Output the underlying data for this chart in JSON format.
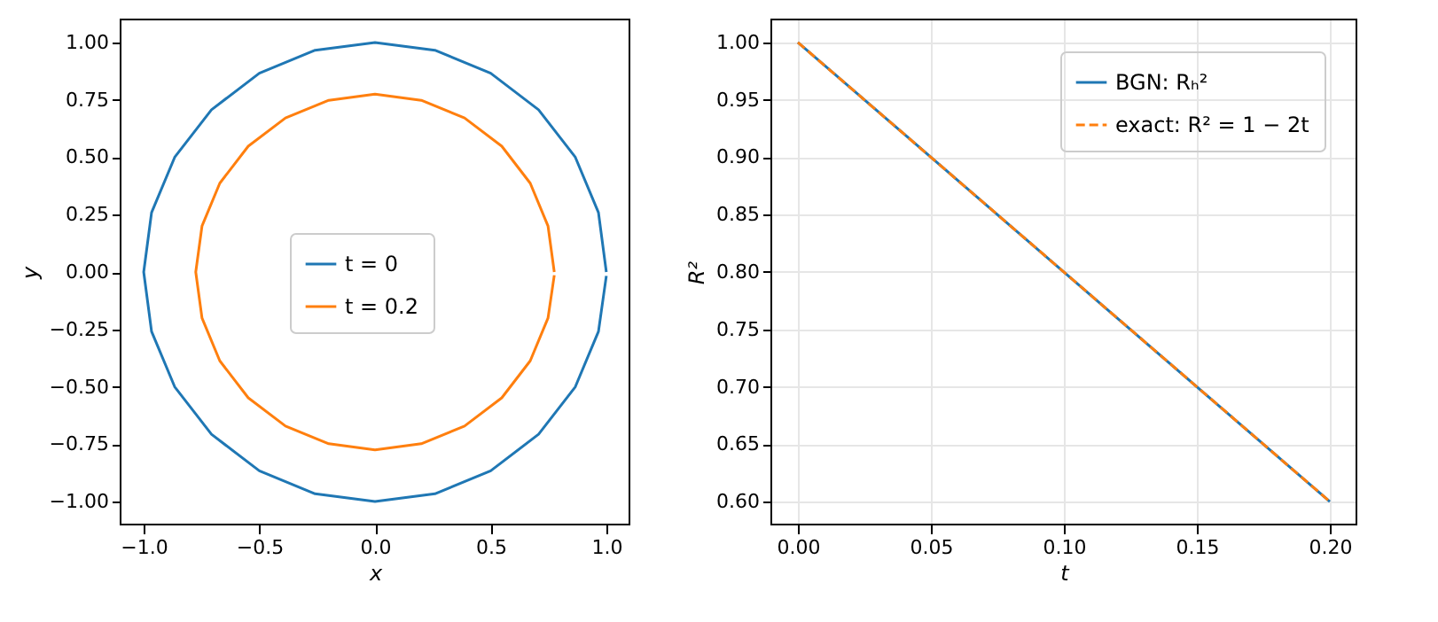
{
  "chart_data": [
    {
      "type": "line",
      "xlabel": "x",
      "ylabel": "y",
      "legend": "center",
      "xlim": [
        -1.1,
        1.1
      ],
      "ylim": [
        -1.1,
        1.1
      ],
      "xticks": [
        {
          "value": -1,
          "label": "−1.0"
        },
        {
          "value": -0.5,
          "label": "−0.5"
        },
        {
          "value": 0,
          "label": "0.0"
        },
        {
          "value": 0.5,
          "label": "0.5"
        },
        {
          "value": 1,
          "label": "1.0"
        }
      ],
      "yticks": [
        {
          "value": -1,
          "label": "−1.00"
        },
        {
          "value": -0.75,
          "label": "−0.75"
        },
        {
          "value": -0.5,
          "label": "−0.50"
        },
        {
          "value": -0.25,
          "label": "−0.25"
        },
        {
          "value": 0,
          "label": "0.00"
        },
        {
          "value": 0.25,
          "label": "0.25"
        },
        {
          "value": 0.5,
          "label": "0.50"
        },
        {
          "value": 0.75,
          "label": "0.75"
        },
        {
          "value": 1,
          "label": "1.00"
        }
      ],
      "series": [
        {
          "name": "t = 0",
          "color": "#1f77b4",
          "x": [
            1,
            0.966,
            0.866,
            0.707,
            0.5,
            0.259,
            0,
            -0.259,
            -0.5,
            -0.707,
            -0.866,
            -0.966,
            -1,
            -0.966,
            -0.866,
            -0.707,
            -0.5,
            -0.259,
            0,
            0.259,
            0.5,
            0.707,
            0.866,
            0.966,
            1
          ],
          "values": [
            0,
            0.259,
            0.5,
            0.707,
            0.866,
            0.966,
            1,
            0.966,
            0.866,
            0.707,
            0.5,
            0.259,
            0,
            -0.259,
            -0.5,
            -0.707,
            -0.866,
            -0.966,
            -1,
            -0.966,
            -0.866,
            -0.707,
            -0.5,
            -0.259,
            -0.017
          ]
        },
        {
          "name": "t = 0.2",
          "color": "#ff7f0e",
          "x": [
            0.775,
            0.748,
            0.671,
            0.548,
            0.387,
            0.2,
            0,
            -0.2,
            -0.387,
            -0.548,
            -0.671,
            -0.748,
            -0.775,
            -0.748,
            -0.671,
            -0.548,
            -0.387,
            -0.2,
            0,
            0.2,
            0.387,
            0.548,
            0.671,
            0.748,
            0.775
          ],
          "values": [
            0,
            0.2,
            0.387,
            0.548,
            0.671,
            0.748,
            0.775,
            0.748,
            0.671,
            0.548,
            0.387,
            0.2,
            0,
            -0.2,
            -0.387,
            -0.548,
            -0.671,
            -0.748,
            -0.775,
            -0.748,
            -0.671,
            -0.548,
            -0.387,
            -0.2,
            -0.014
          ]
        }
      ]
    },
    {
      "type": "line",
      "xlabel": "t",
      "ylabel": "R²",
      "legend": "top right",
      "grid": true,
      "xlim": [
        -0.01,
        0.21
      ],
      "ylim": [
        0.58,
        1.02
      ],
      "xticks": [
        {
          "value": 0,
          "label": "0.00"
        },
        {
          "value": 0.05,
          "label": "0.05"
        },
        {
          "value": 0.1,
          "label": "0.10"
        },
        {
          "value": 0.15,
          "label": "0.15"
        },
        {
          "value": 0.2,
          "label": "0.20"
        }
      ],
      "yticks": [
        {
          "value": 0.6,
          "label": "0.60"
        },
        {
          "value": 0.65,
          "label": "0.65"
        },
        {
          "value": 0.7,
          "label": "0.70"
        },
        {
          "value": 0.75,
          "label": "0.75"
        },
        {
          "value": 0.8,
          "label": "0.80"
        },
        {
          "value": 0.85,
          "label": "0.85"
        },
        {
          "value": 0.9,
          "label": "0.90"
        },
        {
          "value": 0.95,
          "label": "0.95"
        },
        {
          "value": 1,
          "label": "1.00"
        }
      ],
      "series": [
        {
          "name": "BGN: Rₕ²",
          "color": "#1f77b4",
          "line_style": "solid",
          "x": [
            0,
            0.2
          ],
          "values": [
            1,
            0.6
          ]
        },
        {
          "name": "exact: R² = 1 − 2t",
          "color": "#ff7f0e",
          "line_style": "dashed",
          "x": [
            0,
            0.2
          ],
          "values": [
            1,
            0.6
          ]
        }
      ]
    }
  ]
}
